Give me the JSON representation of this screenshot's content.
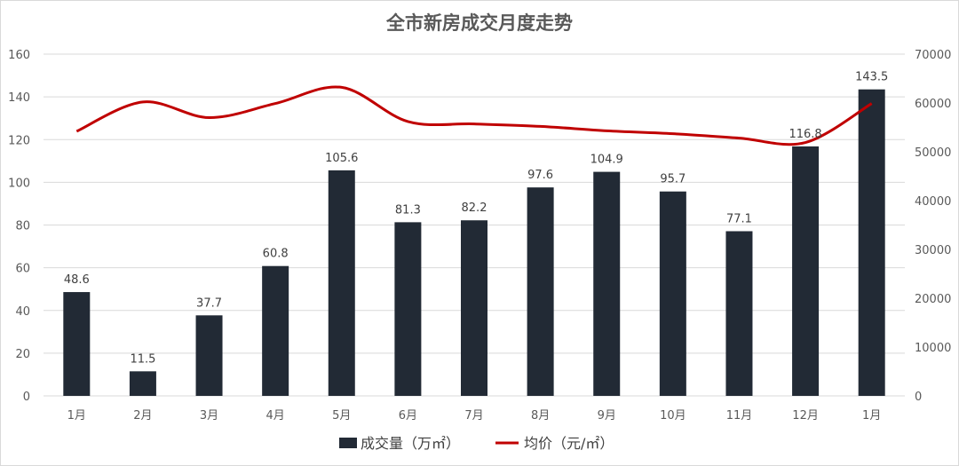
{
  "chart_data": {
    "type": "bar",
    "title": "全市新房成交月度走势",
    "categories": [
      "1月",
      "2月",
      "3月",
      "4月",
      "5月",
      "6月",
      "7月",
      "8月",
      "9月",
      "10月",
      "11月",
      "12月",
      "1月"
    ],
    "series": [
      {
        "name": "成交量（万㎡）",
        "type": "bar",
        "axis": "left",
        "color": "#222a35",
        "values": [
          48.6,
          11.5,
          37.7,
          60.8,
          105.6,
          81.3,
          82.2,
          97.6,
          104.9,
          95.7,
          77.1,
          116.8,
          143.5
        ],
        "labels": [
          "48.6",
          "11.5",
          "37.7",
          "60.8",
          "105.6",
          "81.3",
          "82.2",
          "97.6",
          "104.9",
          "95.7",
          "77.1",
          "116.8",
          "143.5"
        ]
      },
      {
        "name": "均价（元/㎡）",
        "type": "line",
        "axis": "right",
        "color": "#c00000",
        "values": [
          54200,
          60200,
          57000,
          59900,
          63200,
          56200,
          55700,
          55200,
          54300,
          53700,
          52800,
          51900,
          59900
        ]
      }
    ],
    "y_left": {
      "ylim": [
        0,
        160
      ],
      "ticks": [
        "0",
        "20",
        "40",
        "60",
        "80",
        "100",
        "120",
        "140",
        "160"
      ]
    },
    "y_right": {
      "ylim": [
        0,
        70000
      ],
      "ticks": [
        "0",
        "10000",
        "20000",
        "30000",
        "40000",
        "50000",
        "60000",
        "70000"
      ]
    },
    "grid": true,
    "legend": "bottom"
  }
}
